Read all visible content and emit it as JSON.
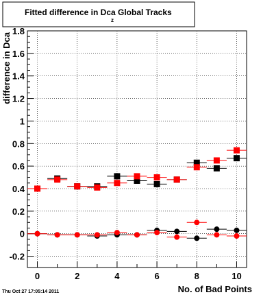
{
  "chart_data": {
    "type": "scatter",
    "title": "Fitted difference in Dca",
    "title_subscript": "z",
    "title_suffix": "Global Tracks",
    "xlabel": "No. of Bad Points",
    "ylabel": "difference in Dca",
    "xlim": [
      -0.5,
      10.5
    ],
    "ylim": [
      -0.3,
      1.8
    ],
    "x_ticks": [
      0,
      2,
      4,
      6,
      8,
      10
    ],
    "y_ticks": [
      -0.2,
      0,
      0.2,
      0.4,
      0.6,
      0.8,
      1,
      1.2,
      1.4,
      1.6,
      1.8
    ],
    "y_tick_labels": [
      "-0.2",
      "0",
      "0.2",
      "0.4",
      "0.6",
      "0.8",
      "1",
      "1.2",
      "1.4",
      "1.6",
      "1.8"
    ],
    "grid": true,
    "series": [
      {
        "marker": "square",
        "color": "#000000",
        "x": [
          0,
          1,
          2,
          3,
          4,
          5,
          6,
          7,
          8,
          9,
          10
        ],
        "y": [
          0.4,
          0.49,
          0.42,
          0.42,
          0.51,
          0.47,
          0.44,
          0.48,
          0.63,
          0.58,
          0.67
        ]
      },
      {
        "marker": "square",
        "color": "#ff0000",
        "x": [
          0,
          1,
          2,
          3,
          4,
          5,
          6,
          7,
          8,
          9,
          10
        ],
        "y": [
          0.4,
          0.48,
          0.42,
          0.41,
          0.45,
          0.51,
          0.5,
          0.48,
          0.59,
          0.65,
          0.74
        ]
      },
      {
        "marker": "circle",
        "color": "#000000",
        "x": [
          0,
          1,
          2,
          3,
          4,
          5,
          6,
          7,
          8,
          9,
          10
        ],
        "y": [
          0.0,
          -0.01,
          -0.01,
          -0.02,
          -0.01,
          -0.01,
          0.03,
          0.02,
          -0.04,
          0.04,
          0.03
        ]
      },
      {
        "marker": "circle",
        "color": "#ff0000",
        "x": [
          0,
          1,
          2,
          3,
          4,
          5,
          6,
          7,
          8,
          9,
          10
        ],
        "y": [
          0.0,
          -0.01,
          -0.01,
          -0.01,
          0.01,
          -0.01,
          0.01,
          -0.03,
          0.1,
          -0.01,
          -0.02
        ]
      }
    ]
  },
  "footer": {
    "timestamp": "Thu Oct 27 17:05:14 2011"
  }
}
